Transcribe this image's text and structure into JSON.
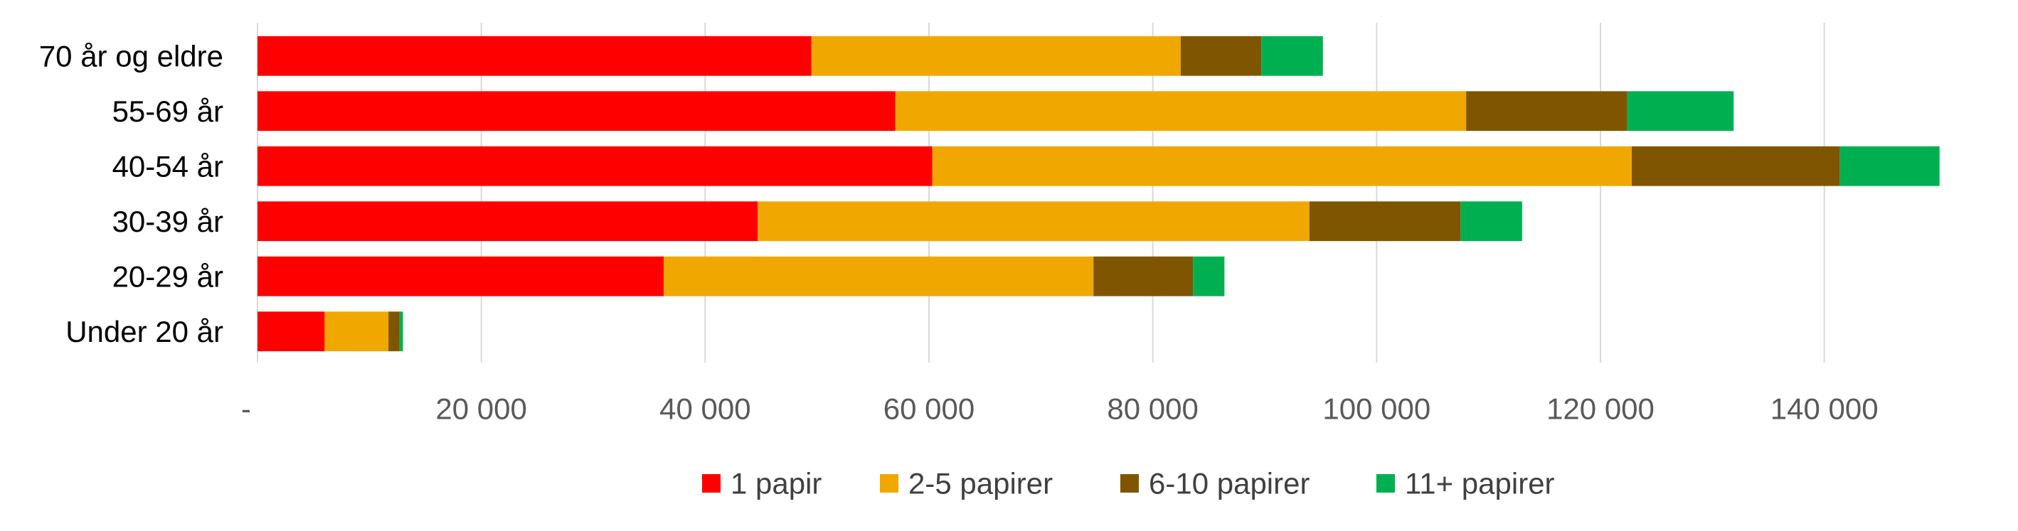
{
  "chart_data": {
    "type": "bar",
    "orientation": "horizontal",
    "stacked": true,
    "title": "",
    "xlabel": "",
    "ylabel": "",
    "categories": [
      "70 år og eldre",
      "55-69 år",
      "40-54 år",
      "30-39 år",
      "20-29 år",
      "Under 20 år"
    ],
    "series": [
      {
        "name": "1 papir",
        "color": "#ff0000",
        "values": [
          49500,
          57000,
          60300,
          44700,
          36300,
          6000
        ]
      },
      {
        "name": "2-5 papirer",
        "color": "#f0a800",
        "values": [
          33000,
          51000,
          62500,
          49300,
          38400,
          5700
        ]
      },
      {
        "name": "6-10 papirer",
        "color": "#7f5500",
        "values": [
          7200,
          14400,
          18600,
          13500,
          8900,
          1000
        ]
      },
      {
        "name": "11+ papirer",
        "color": "#00b050",
        "values": [
          5500,
          9500,
          8900,
          5500,
          2800,
          300
        ]
      }
    ],
    "xlim": [
      0,
      150000
    ],
    "xticks": [
      0,
      20000,
      40000,
      60000,
      80000,
      100000,
      120000,
      140000
    ],
    "xtick_labels": [
      "-",
      "20 000",
      "40 000",
      "60 000",
      "80 000",
      "100 000",
      "120 000",
      "140 000"
    ],
    "grid": true,
    "legend_position": "bottom"
  }
}
